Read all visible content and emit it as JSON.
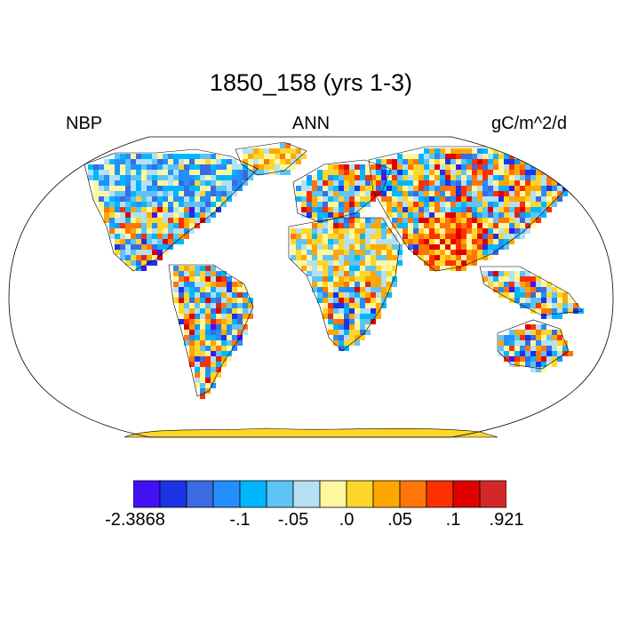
{
  "title": "1850_158 (yrs 1-3)",
  "variable": "NBP",
  "period": "ANN",
  "units": "gC/m^2/d",
  "colorbar": {
    "colors": [
      "#4311f5",
      "#1c33e6",
      "#3c6ae0",
      "#228ffd",
      "#00b7ff",
      "#5dc4f5",
      "#b4e0f4",
      "#fff7a0",
      "#fed62a",
      "#fea700",
      "#fe7508",
      "#fe3000",
      "#e10000",
      "#d42828"
    ],
    "labels": [
      {
        "text": "-2.3868",
        "boundary": 0
      },
      {
        "text": "-.1",
        "boundary": 4
      },
      {
        "text": "-.05",
        "boundary": 6
      },
      {
        "text": ".0",
        "boundary": 8
      },
      {
        "text": ".05",
        "boundary": 10
      },
      {
        "text": ".1",
        "boundary": 12
      },
      {
        "text": ".921",
        "boundary": 14
      }
    ]
  },
  "map": {
    "projection": "robinson",
    "ocean_color": "#ffffff",
    "antarctica_color": "#fed62a"
  }
}
